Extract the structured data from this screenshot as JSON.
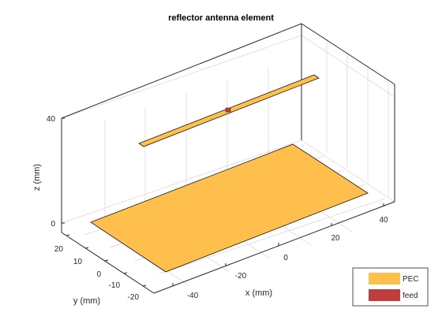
{
  "figure": {
    "title": "reflector antenna element",
    "axes": {
      "x": {
        "label": "x (mm)",
        "ticks": [
          "-40",
          "-20",
          "0",
          "20",
          "40"
        ]
      },
      "y": {
        "label": "y (mm)",
        "ticks": [
          "-20",
          "-10",
          "0",
          "10",
          "20"
        ]
      },
      "z": {
        "label": "z (mm)",
        "ticks": [
          "0",
          "40"
        ]
      }
    },
    "legend": [
      {
        "label": "PEC",
        "color": "#ffbf4d"
      },
      {
        "label": "feed",
        "color": "#bf3d3d"
      }
    ]
  }
}
